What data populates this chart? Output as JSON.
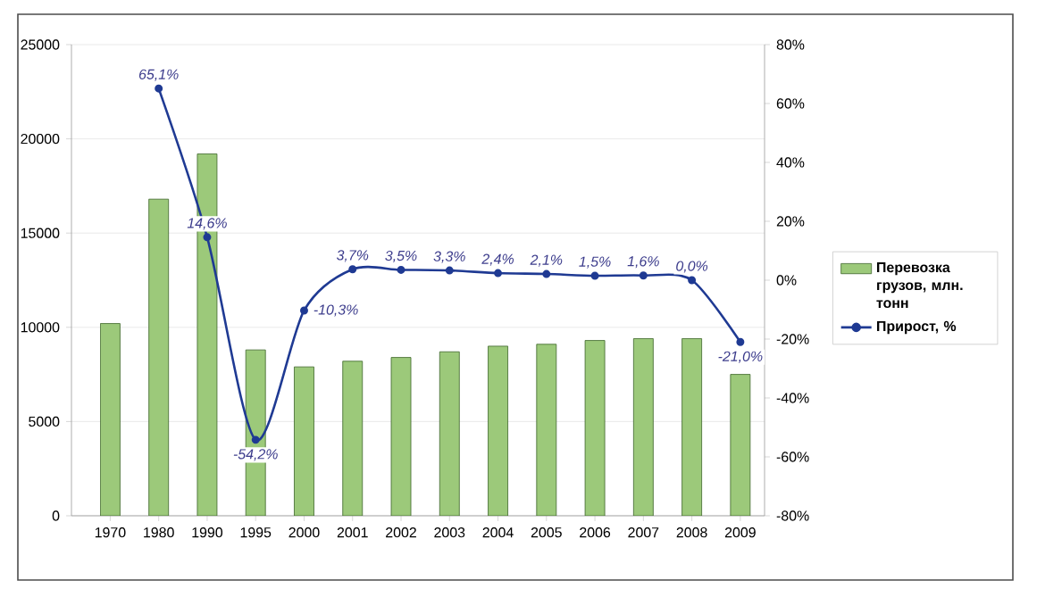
{
  "chart_data": {
    "type": "bar",
    "categories": [
      "1970",
      "1980",
      "1990",
      "1995",
      "2000",
      "2001",
      "2002",
      "2003",
      "2004",
      "2005",
      "2006",
      "2007",
      "2008",
      "2009"
    ],
    "series": [
      {
        "name": "Перевозка грузов, млн. тонн",
        "color": "#9cc97a",
        "values": [
          10200,
          16800,
          19200,
          8800,
          7900,
          8200,
          8400,
          8700,
          9000,
          9100,
          9300,
          9400,
          9400,
          7500
        ]
      },
      {
        "name": "Прирост, %",
        "type": "line",
        "axis": "y2",
        "color": "#1f3a93",
        "values": [
          null,
          65.1,
          14.6,
          -54.2,
          -10.3,
          3.7,
          3.5,
          3.3,
          2.4,
          2.1,
          1.5,
          1.6,
          0.0,
          -21.0
        ],
        "value_labels": [
          null,
          "65,1%",
          "14,6%",
          "-54,2%",
          "-10,3%",
          "3,7%",
          "3,5%",
          "3,3%",
          "2,4%",
          "2,1%",
          "1,5%",
          "1,6%",
          "0,0%",
          "-21,0%"
        ]
      }
    ],
    "ylim": [
      0,
      25000
    ],
    "yticks": [
      0,
      5000,
      10000,
      15000,
      20000,
      25000
    ],
    "y2lim": [
      -80,
      80
    ],
    "y2ticks": [
      {
        "value": -80,
        "label": "-80%"
      },
      {
        "value": -60,
        "label": "-60%"
      },
      {
        "value": -40,
        "label": "-40%"
      },
      {
        "value": -20,
        "label": "-20%"
      },
      {
        "value": 0,
        "label": "0%"
      },
      {
        "value": 20,
        "label": "20%"
      },
      {
        "value": 40,
        "label": "40%"
      },
      {
        "value": 60,
        "label": "60%"
      },
      {
        "value": 80,
        "label": "80%"
      }
    ],
    "grid": "y",
    "legend": "right",
    "marker": "circle",
    "line_style": "solid"
  }
}
